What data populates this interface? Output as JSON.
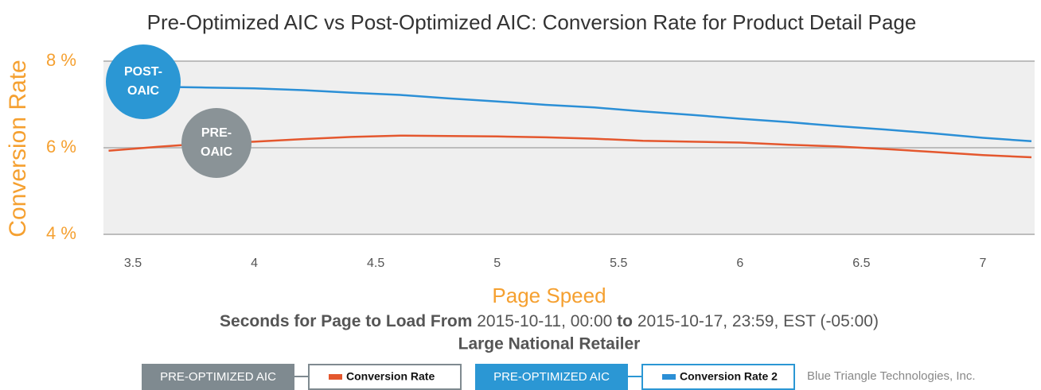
{
  "chart_data": {
    "type": "line",
    "title": "Pre-Optimized AIC vs Post-Optimized AIC: Conversion Rate  for Product Detail Page",
    "y_label": "Conversion Rate",
    "x_label": "Page Speed",
    "subtitle": [
      {
        "text": "Seconds for Page to Load From",
        "bold": true
      },
      {
        "text": "2015-10-11, 00:00",
        "bold": false
      },
      {
        "text": "to",
        "bold": true
      },
      {
        "text": "2015-10-17, 23:59, EST (-05:00)",
        "bold": false
      }
    ],
    "subtitle2": "Large National Retailer",
    "credit": "Blue Triangle Technologies, Inc.",
    "annotations": [
      {
        "lines": [
          "POST-",
          "OAIC"
        ],
        "color": "#2b97d4"
      },
      {
        "lines": [
          "PRE-",
          "OAIC"
        ],
        "color": "#8a9397"
      }
    ],
    "x": [
      3.4,
      3.6,
      3.8,
      4.0,
      4.2,
      4.4,
      4.6,
      4.8,
      5.0,
      5.2,
      5.4,
      5.6,
      5.8,
      6.0,
      6.2,
      6.4,
      6.6,
      6.8,
      7.0,
      7.2
    ],
    "series": [
      {
        "name": "Conversion Rate",
        "group": "PRE-OPTIMIZED AIC",
        "group_color": "#7f8a90",
        "color": "#e4572e",
        "values": [
          5.93,
          6.02,
          6.1,
          6.14,
          6.2,
          6.25,
          6.28,
          6.27,
          6.26,
          6.24,
          6.21,
          6.16,
          6.14,
          6.12,
          6.07,
          6.03,
          5.97,
          5.9,
          5.83,
          5.78
        ]
      },
      {
        "name": "Conversion Rate 2",
        "group": "PRE-OPTIMIZED AIC",
        "group_color": "#2b97d4",
        "color": "#2b8fd6",
        "values": [
          7.42,
          7.41,
          7.39,
          7.37,
          7.33,
          7.27,
          7.22,
          7.14,
          7.07,
          6.99,
          6.93,
          6.84,
          6.76,
          6.67,
          6.59,
          6.5,
          6.42,
          6.33,
          6.23,
          6.15
        ]
      }
    ],
    "xlim": [
      3.4,
      7.2
    ],
    "xticks": [
      3.5,
      4,
      4.5,
      5,
      5.5,
      6,
      6.5,
      7
    ],
    "ylim": [
      4,
      8
    ],
    "yticks": [
      {
        "value": 4,
        "label": "4 %"
      },
      {
        "value": 6,
        "label": "6 %"
      },
      {
        "value": 8,
        "label": "8 %"
      }
    ],
    "grid": true
  }
}
